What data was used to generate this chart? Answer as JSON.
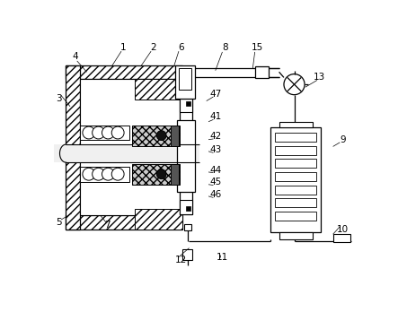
{
  "bg_color": "#ffffff",
  "line_color": "#000000",
  "label_data": [
    [
      "1",
      105,
      14
    ],
    [
      "2",
      148,
      14
    ],
    [
      "3",
      12,
      88
    ],
    [
      "4",
      35,
      28
    ],
    [
      "5",
      12,
      268
    ],
    [
      "6",
      188,
      14
    ],
    [
      "7",
      82,
      272
    ],
    [
      "8",
      252,
      15
    ],
    [
      "9",
      422,
      148
    ],
    [
      "10",
      422,
      278
    ],
    [
      "11",
      248,
      318
    ],
    [
      "12",
      188,
      322
    ],
    [
      "13",
      388,
      58
    ],
    [
      "15",
      298,
      15
    ],
    [
      "41",
      238,
      115
    ],
    [
      "42",
      238,
      143
    ],
    [
      "43",
      238,
      163
    ],
    [
      "44",
      238,
      192
    ],
    [
      "45",
      238,
      210
    ],
    [
      "46",
      238,
      228
    ],
    [
      "47",
      238,
      82
    ]
  ],
  "leader_lines": [
    [
      102,
      20,
      88,
      42
    ],
    [
      145,
      20,
      130,
      42
    ],
    [
      15,
      84,
      28,
      100
    ],
    [
      38,
      34,
      52,
      50
    ],
    [
      15,
      264,
      30,
      255
    ],
    [
      185,
      20,
      178,
      42
    ],
    [
      80,
      268,
      72,
      258
    ],
    [
      248,
      21,
      238,
      48
    ],
    [
      418,
      152,
      408,
      158
    ],
    [
      418,
      274,
      408,
      285
    ],
    [
      245,
      314,
      245,
      318
    ],
    [
      185,
      318,
      200,
      305
    ],
    [
      385,
      62,
      368,
      72
    ],
    [
      295,
      21,
      292,
      45
    ],
    [
      235,
      119,
      228,
      122
    ],
    [
      235,
      147,
      228,
      148
    ],
    [
      235,
      167,
      228,
      165
    ],
    [
      235,
      196,
      228,
      195
    ],
    [
      235,
      214,
      228,
      213
    ],
    [
      235,
      232,
      228,
      230
    ],
    [
      235,
      86,
      225,
      92
    ]
  ]
}
